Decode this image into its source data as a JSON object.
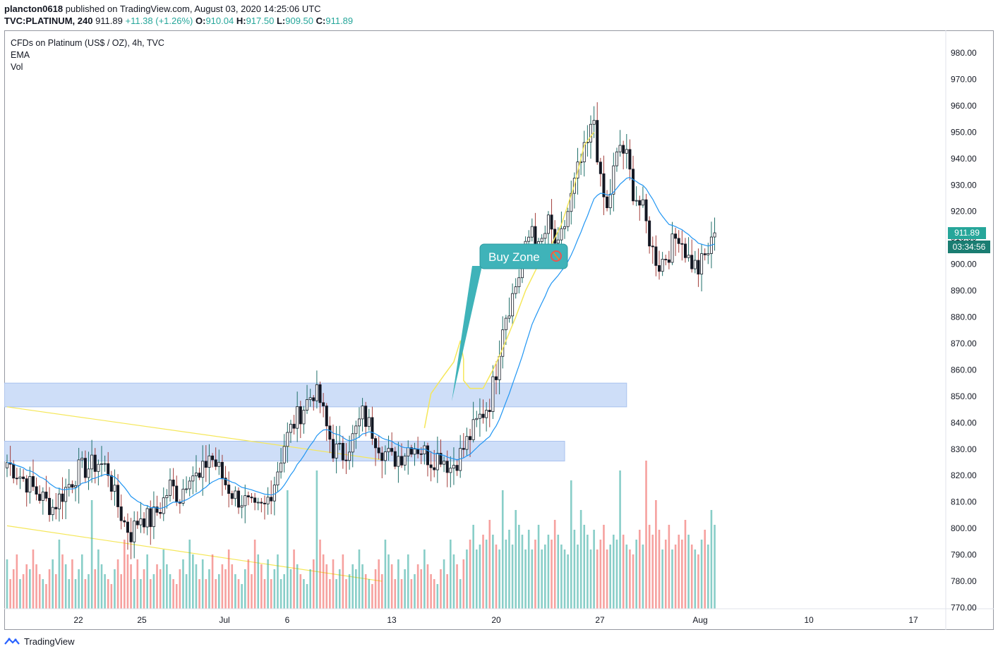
{
  "header": {
    "publisher": "plancton0618",
    "published_text": "published on TradingView.com, August 03, 2020 14:25:06 UTC",
    "symbol_line": {
      "symbol": "TVC:PLATINUM, 240",
      "last": "911.89",
      "change": "+11.38 (+1.26%)",
      "o_label": "O:",
      "o": "910.04",
      "h_label": "H:",
      "h": "917.50",
      "l_label": "L:",
      "l": "909.50",
      "c_label": "C:",
      "c": "911.89"
    }
  },
  "legend": {
    "title": "CFDs on Platinum (US$ / OZ), 4h, TVC",
    "ema": "EMA",
    "vol": "Vol"
  },
  "price_label": "911.89",
  "countdown": "03:34:56",
  "annotation": {
    "text": "Buy Zone"
  },
  "footer": {
    "brand": "TradingView"
  },
  "colors": {
    "up": "#26a69a",
    "down": "#ef5350",
    "ema": "#2196f3",
    "zone": "#c5d8f7",
    "trend": "#f5e75a",
    "callout": "#3fb3b9"
  },
  "chart_data": {
    "type": "candlestick",
    "timeframe": "4h",
    "x_tick_labels": [
      "22",
      "25",
      "Jul",
      "6",
      "13",
      "20",
      "27",
      "Aug",
      "10",
      "17"
    ],
    "y_tick_labels": [
      "980.00",
      "970.00",
      "960.00",
      "950.00",
      "940.00",
      "930.00",
      "920.00",
      "910.00",
      "900.00",
      "890.00",
      "880.00",
      "870.00",
      "860.00",
      "850.00",
      "840.00",
      "830.00",
      "820.00",
      "810.00",
      "800.00",
      "790.00",
      "780.00",
      "770.00"
    ],
    "ylim": [
      768,
      985
    ],
    "anchors": [
      [
        0,
        825
      ],
      [
        4,
        820
      ],
      [
        8,
        815
      ],
      [
        12,
        810
      ],
      [
        14,
        808
      ],
      [
        18,
        815
      ],
      [
        22,
        822
      ],
      [
        25,
        823
      ],
      [
        28,
        825
      ],
      [
        31,
        822
      ],
      [
        33,
        812
      ],
      [
        36,
        802
      ],
      [
        38,
        798
      ],
      [
        41,
        805
      ],
      [
        44,
        803
      ],
      [
        47,
        808
      ],
      [
        50,
        816
      ],
      [
        53,
        812
      ],
      [
        56,
        822
      ],
      [
        59,
        818
      ],
      [
        62,
        828
      ],
      [
        65,
        822
      ],
      [
        67,
        817
      ],
      [
        70,
        812
      ],
      [
        73,
        810
      ],
      [
        76,
        806
      ],
      [
        79,
        808
      ],
      [
        82,
        818
      ],
      [
        85,
        832
      ],
      [
        88,
        840
      ],
      [
        91,
        846
      ],
      [
        94,
        852
      ],
      [
        96,
        848
      ],
      [
        98,
        838
      ],
      [
        100,
        830
      ],
      [
        103,
        828
      ],
      [
        106,
        834
      ],
      [
        109,
        843
      ],
      [
        112,
        837
      ],
      [
        115,
        830
      ],
      [
        118,
        826
      ],
      [
        121,
        828
      ],
      [
        124,
        832
      ],
      [
        127,
        830
      ],
      [
        130,
        826
      ],
      [
        133,
        828
      ],
      [
        136,
        823
      ],
      [
        139,
        828
      ],
      [
        142,
        835
      ],
      [
        145,
        842
      ],
      [
        148,
        848
      ],
      [
        150,
        860
      ],
      [
        152,
        878
      ],
      [
        155,
        888
      ],
      [
        158,
        900
      ],
      [
        161,
        915
      ],
      [
        163,
        905
      ],
      [
        166,
        915
      ],
      [
        169,
        905
      ],
      [
        172,
        920
      ],
      [
        175,
        935
      ],
      [
        178,
        945
      ],
      [
        180,
        955
      ],
      [
        182,
        930
      ],
      [
        184,
        920
      ],
      [
        186,
        935
      ],
      [
        188,
        945
      ],
      [
        190,
        940
      ],
      [
        192,
        928
      ],
      [
        195,
        920
      ],
      [
        198,
        905
      ],
      [
        200,
        900
      ],
      [
        203,
        905
      ],
      [
        206,
        912
      ],
      [
        209,
        902
      ],
      [
        212,
        898
      ],
      [
        215,
        905
      ],
      [
        218,
        912
      ]
    ],
    "n_candles": 218,
    "volume": {
      "pattern": [
        10,
        6,
        8,
        11,
        6,
        7,
        9,
        8,
        12,
        9,
        7,
        6,
        5,
        8,
        10,
        7,
        14,
        11,
        9,
        6
      ],
      "spikes": [
        [
          26,
          22
        ],
        [
          86,
          24
        ],
        [
          95,
          28
        ],
        [
          152,
          24
        ],
        [
          173,
          26
        ],
        [
          188,
          28
        ],
        [
          196,
          30
        ],
        [
          199,
          22
        ]
      ]
    },
    "ema_length": 20,
    "zones": [
      {
        "from": 855,
        "to": 846,
        "end_index": 190
      },
      {
        "from": 833,
        "to": 825.5,
        "end_index": 171
      }
    ],
    "trendlines": [
      {
        "from": [
          0,
          846
        ],
        "to": [
          115,
          826
        ]
      },
      {
        "from": [
          0,
          801
        ],
        "to": [
          115,
          780
        ]
      }
    ],
    "hand_drawn_path": [
      [
        128,
        838
      ],
      [
        130,
        851
      ],
      [
        134,
        858
      ],
      [
        137,
        863
      ],
      [
        139,
        871
      ],
      [
        140,
        864
      ],
      [
        140,
        856
      ],
      [
        142,
        853
      ],
      [
        146,
        853
      ],
      [
        149,
        860
      ],
      [
        152,
        868
      ],
      [
        156,
        880
      ],
      [
        159,
        890
      ],
      [
        163,
        900
      ],
      [
        166,
        905
      ],
      [
        170,
        915
      ],
      [
        174,
        930
      ],
      [
        177,
        945
      ],
      [
        180,
        950
      ]
    ],
    "grid": false,
    "legend_position": "top-left"
  }
}
